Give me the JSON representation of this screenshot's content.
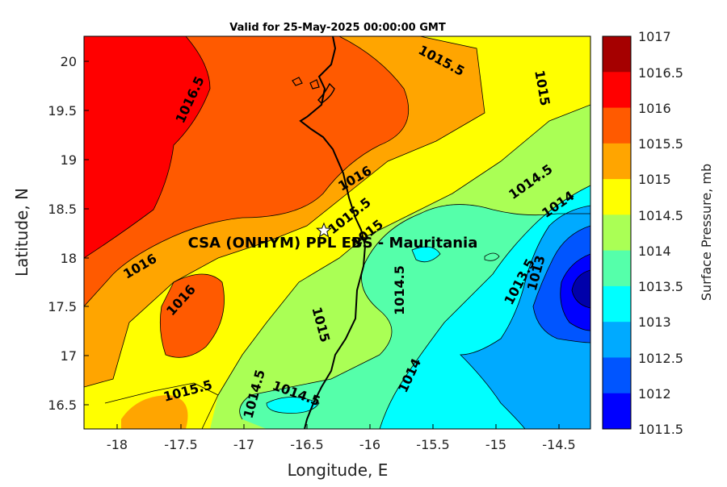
{
  "title": "Valid for 25-May-2025 00:00:00 GMT",
  "x_axis": {
    "label": "Longitude, E",
    "ticks": [
      "-18",
      "-17.5",
      "-17",
      "-16.5",
      "-16",
      "-15.5",
      "-15",
      "-14.5"
    ]
  },
  "y_axis": {
    "label": "Latitude, N",
    "ticks": [
      "20",
      "19.5",
      "19",
      "18.5",
      "18",
      "17.5",
      "17",
      "16.5"
    ]
  },
  "colorbar": {
    "label": "Surface Pressure, mb",
    "ticks": [
      "1017",
      "1016.5",
      "1016",
      "1015.5",
      "1015",
      "1014.5",
      "1014",
      "1013.5",
      "1013",
      "1012.5",
      "1012",
      "1011.5"
    ],
    "colors": [
      "#a50000",
      "#ff0000",
      "#ff5a00",
      "#ffa500",
      "#ffff00",
      "#aaff55",
      "#55ffaa",
      "#00ffff",
      "#00aaff",
      "#0055ff",
      "#0000ff",
      "#0000aa"
    ]
  },
  "station": {
    "label": "CSA (ONHYM) PPL EBS  - Mauritania",
    "marker": "star-icon"
  },
  "contour_labels": [
    "1016.5",
    "1015.5",
    "1015",
    "1016",
    "1015.5",
    "1015",
    "1016",
    "1016",
    "1014.5",
    "1014",
    "1014.5",
    "1013.5",
    "1013",
    "1015",
    "1014.5",
    "1015.5",
    "1014.5",
    "1014",
    "1014"
  ],
  "chart_data": {
    "type": "heatmap",
    "title": "Valid for 25-May-2025 00:00:00 GMT",
    "xlabel": "Longitude, E",
    "ylabel": "Latitude, N",
    "xlim": [
      -18.3,
      -14.3
    ],
    "ylim": [
      16.25,
      20.25
    ],
    "colorbar_label": "Surface Pressure, mb",
    "color_range": [
      1011.5,
      1017
    ],
    "contour_interval": 0.5,
    "station_position": {
      "lon": -16.35,
      "lat": 18.28
    },
    "pressure_extremes": [
      {
        "lon": -18.2,
        "lat": 19.9,
        "value": 1016.7
      },
      {
        "lon": -17.4,
        "lat": 17.5,
        "value": 1016.2
      },
      {
        "lon": -14.3,
        "lat": 17.7,
        "value": 1012.3
      }
    ]
  }
}
